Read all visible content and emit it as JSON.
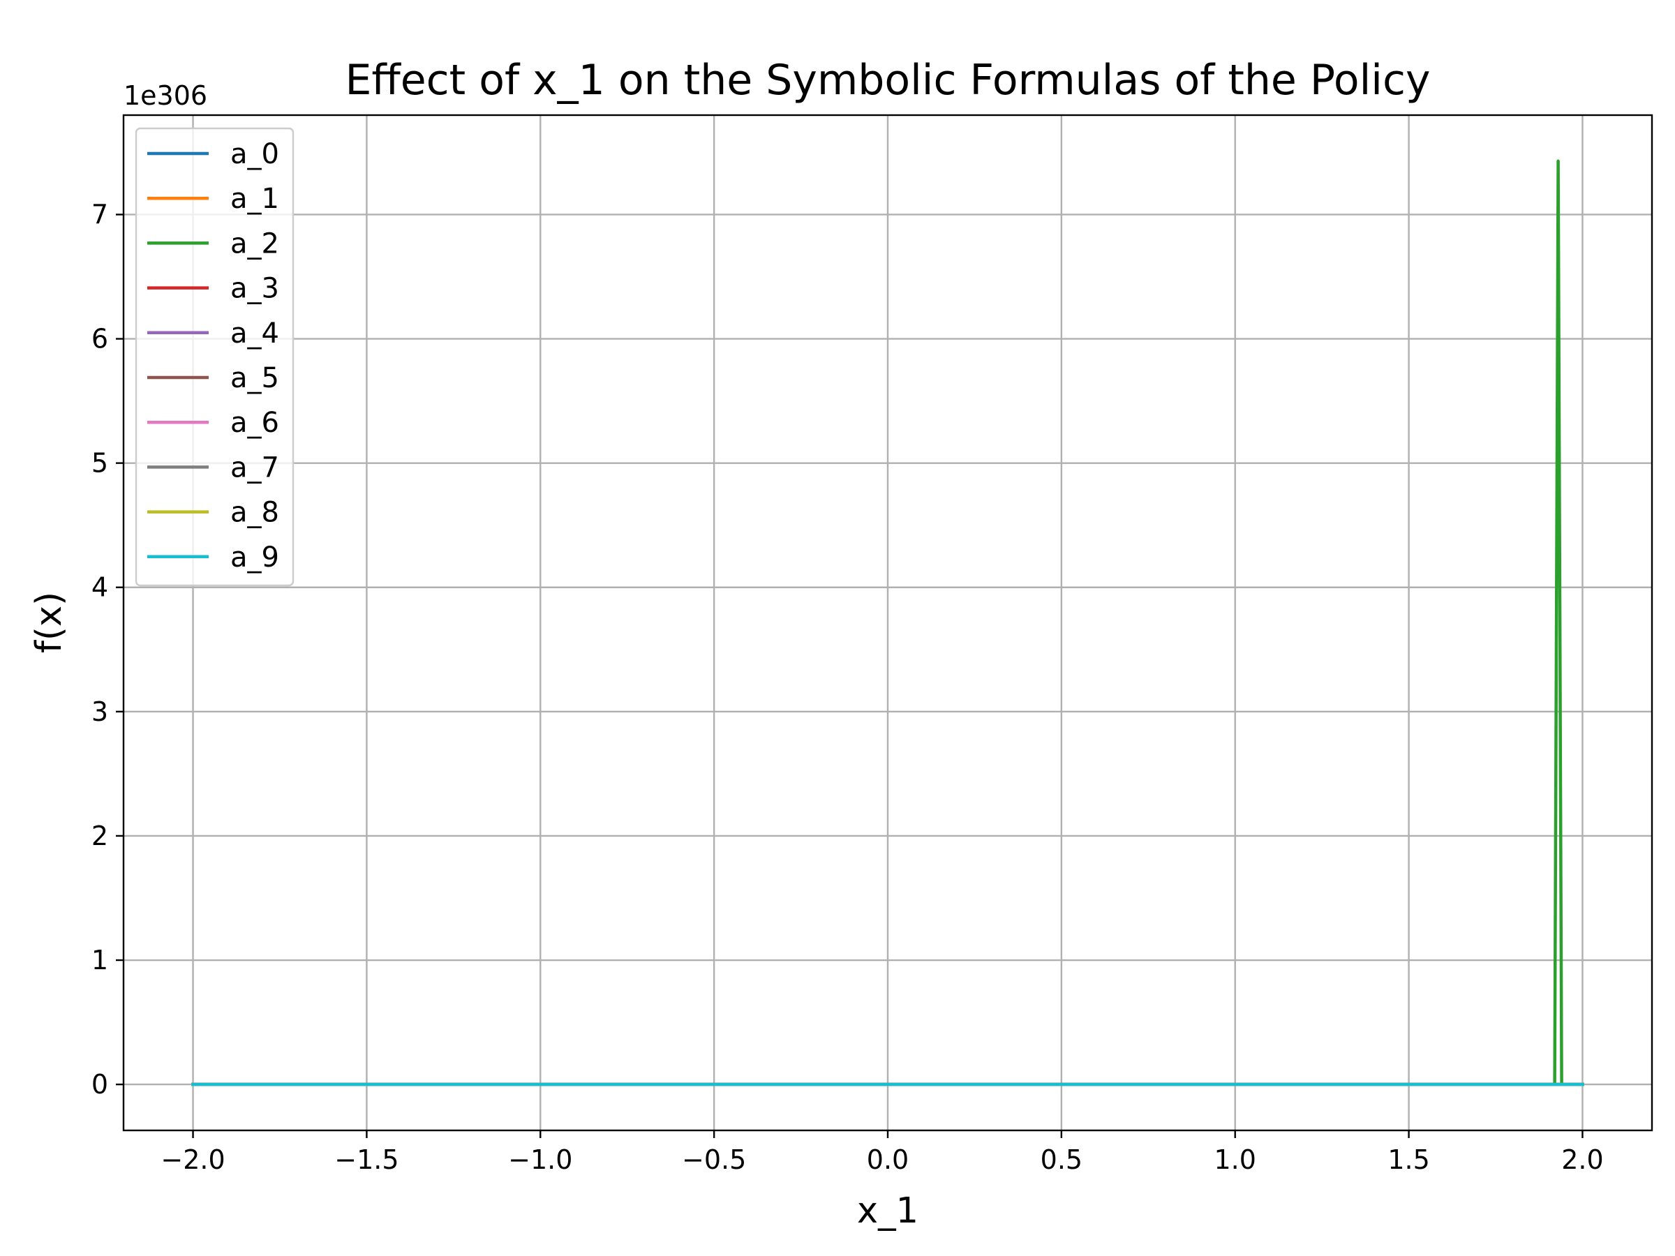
{
  "chart_data": {
    "type": "line",
    "title": "Effect of x_1 on the Symbolic Formulas of the Policy",
    "xlabel": "x_1",
    "ylabel": "f(x)",
    "y_offset_text": "1e306",
    "y_scale": 1e+306,
    "xlim": [
      -2.2,
      2.2
    ],
    "ylim": [
      -0.37,
      7.8
    ],
    "xticks": [
      -2.0,
      -1.5,
      -1.0,
      -0.5,
      0.0,
      0.5,
      1.0,
      1.5,
      2.0
    ],
    "xtick_labels": [
      "−2.0",
      "−1.5",
      "−1.0",
      "−0.5",
      "0.0",
      "0.5",
      "1.0",
      "1.5",
      "2.0"
    ],
    "yticks": [
      0,
      1,
      2,
      3,
      4,
      5,
      6,
      7
    ],
    "ytick_labels": [
      "0",
      "1",
      "2",
      "3",
      "4",
      "5",
      "6",
      "7"
    ],
    "grid": true,
    "legend_position": "upper-left",
    "series": [
      {
        "name": "a_0",
        "color": "#1f77b4",
        "x": [
          -2.0,
          2.0
        ],
        "y": [
          0,
          0
        ]
      },
      {
        "name": "a_1",
        "color": "#ff7f0e",
        "x": [
          -2.0,
          2.0
        ],
        "y": [
          0,
          0
        ]
      },
      {
        "name": "a_2",
        "color": "#2ca02c",
        "x": [
          -2.0,
          1.92,
          1.93,
          1.94,
          2.0
        ],
        "y": [
          0,
          0,
          7.43,
          0,
          0
        ]
      },
      {
        "name": "a_3",
        "color": "#d62728",
        "x": [
          -2.0,
          2.0
        ],
        "y": [
          0,
          0
        ]
      },
      {
        "name": "a_4",
        "color": "#9467bd",
        "x": [
          -2.0,
          2.0
        ],
        "y": [
          0,
          0
        ]
      },
      {
        "name": "a_5",
        "color": "#8c564b",
        "x": [
          -2.0,
          2.0
        ],
        "y": [
          0,
          0
        ]
      },
      {
        "name": "a_6",
        "color": "#e377c2",
        "x": [
          -2.0,
          2.0
        ],
        "y": [
          0,
          0
        ]
      },
      {
        "name": "a_7",
        "color": "#7f7f7f",
        "x": [
          -2.0,
          2.0
        ],
        "y": [
          0,
          0
        ]
      },
      {
        "name": "a_8",
        "color": "#bcbd22",
        "x": [
          -2.0,
          2.0
        ],
        "y": [
          0,
          0
        ]
      },
      {
        "name": "a_9",
        "color": "#17becf",
        "x": [
          -2.0,
          2.0
        ],
        "y": [
          0,
          0
        ]
      }
    ]
  }
}
